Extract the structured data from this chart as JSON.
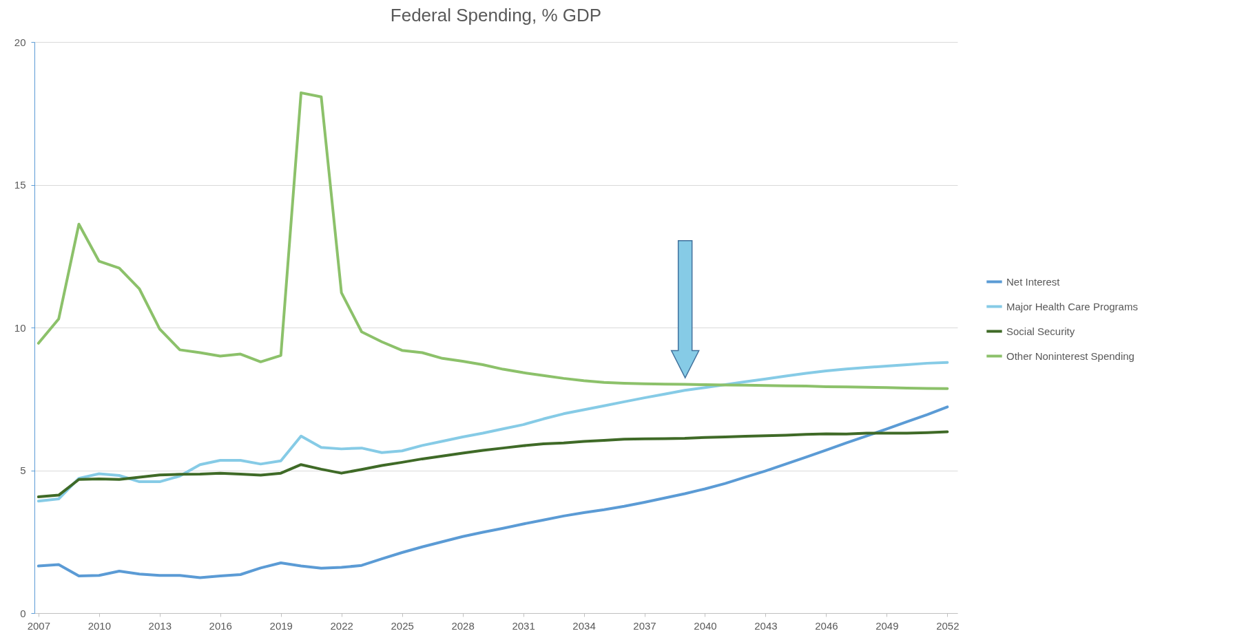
{
  "chart_data": {
    "type": "line",
    "title": "Federal Spending, % GDP",
    "x": [
      2007,
      2008,
      2009,
      2010,
      2011,
      2012,
      2013,
      2014,
      2015,
      2016,
      2017,
      2018,
      2019,
      2020,
      2021,
      2022,
      2023,
      2024,
      2025,
      2026,
      2027,
      2028,
      2029,
      2030,
      2031,
      2032,
      2033,
      2034,
      2035,
      2036,
      2037,
      2038,
      2039,
      2040,
      2041,
      2042,
      2043,
      2044,
      2045,
      2046,
      2047,
      2048,
      2049,
      2050,
      2051,
      2052
    ],
    "series": [
      {
        "name": "Net Interest",
        "color": "#5b9bd5",
        "values": [
          1.65,
          1.7,
          1.3,
          1.32,
          1.47,
          1.37,
          1.32,
          1.32,
          1.24,
          1.3,
          1.35,
          1.58,
          1.76,
          1.65,
          1.57,
          1.6,
          1.67,
          1.9,
          2.12,
          2.32,
          2.5,
          2.68,
          2.83,
          2.97,
          3.12,
          3.26,
          3.4,
          3.52,
          3.62,
          3.74,
          3.88,
          4.03,
          4.18,
          4.35,
          4.54,
          4.76,
          4.98,
          5.22,
          5.46,
          5.71,
          5.96,
          6.2,
          6.45,
          6.7,
          6.95,
          7.22
        ]
      },
      {
        "name": "Major Health Care Programs",
        "color": "#86cbe6",
        "values": [
          3.92,
          4.0,
          4.72,
          4.88,
          4.82,
          4.6,
          4.6,
          4.8,
          5.2,
          5.35,
          5.35,
          5.22,
          5.33,
          6.2,
          5.8,
          5.75,
          5.78,
          5.62,
          5.68,
          5.87,
          6.02,
          6.17,
          6.3,
          6.45,
          6.6,
          6.8,
          6.98,
          7.12,
          7.26,
          7.4,
          7.54,
          7.67,
          7.8,
          7.9,
          8.0,
          8.1,
          8.2,
          8.3,
          8.4,
          8.48,
          8.55,
          8.6,
          8.65,
          8.7,
          8.75,
          8.78
        ]
      },
      {
        "name": "Social Security",
        "color": "#3f6a27",
        "values": [
          4.07,
          4.13,
          4.68,
          4.7,
          4.68,
          4.76,
          4.84,
          4.86,
          4.87,
          4.9,
          4.87,
          4.83,
          4.9,
          5.2,
          5.04,
          4.9,
          5.03,
          5.17,
          5.28,
          5.4,
          5.5,
          5.6,
          5.7,
          5.78,
          5.86,
          5.93,
          5.96,
          6.01,
          6.05,
          6.09,
          6.1,
          6.11,
          6.12,
          6.15,
          6.17,
          6.19,
          6.21,
          6.23,
          6.26,
          6.28,
          6.27,
          6.3,
          6.3,
          6.3,
          6.32,
          6.35
        ]
      },
      {
        "name": "Other Noninterest Spending",
        "color": "#8cc16a",
        "values": [
          9.45,
          10.3,
          13.62,
          12.32,
          12.08,
          11.35,
          9.95,
          9.22,
          9.12,
          9.0,
          9.07,
          8.8,
          9.02,
          18.22,
          18.08,
          11.22,
          9.85,
          9.5,
          9.2,
          9.12,
          8.92,
          8.82,
          8.7,
          8.54,
          8.42,
          8.32,
          8.22,
          8.14,
          8.08,
          8.05,
          8.03,
          8.02,
          8.01,
          8.0,
          7.99,
          7.98,
          7.97,
          7.96,
          7.95,
          7.93,
          7.92,
          7.91,
          7.9,
          7.88,
          7.87,
          7.86
        ]
      }
    ],
    "xlim": [
      2006.8,
      2052.5
    ],
    "xticks": [
      2007,
      2010,
      2013,
      2016,
      2019,
      2022,
      2025,
      2028,
      2031,
      2034,
      2037,
      2040,
      2043,
      2046,
      2049,
      2052
    ],
    "ylim": [
      0,
      20
    ],
    "yticks": [
      0,
      5,
      10,
      15,
      20
    ],
    "grid": "y",
    "legend": "right",
    "marker": "none",
    "line_style": "solid"
  }
}
